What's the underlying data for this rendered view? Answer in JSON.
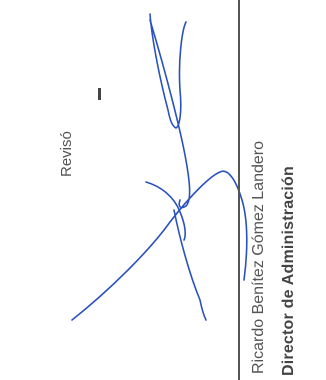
{
  "document": {
    "review_label": "Revisó",
    "signer_name": "Ricardo Benítez Gómez Landero",
    "signer_title": "Director de Administración",
    "signature_color": "#2a52be",
    "line_color": "#555555"
  }
}
